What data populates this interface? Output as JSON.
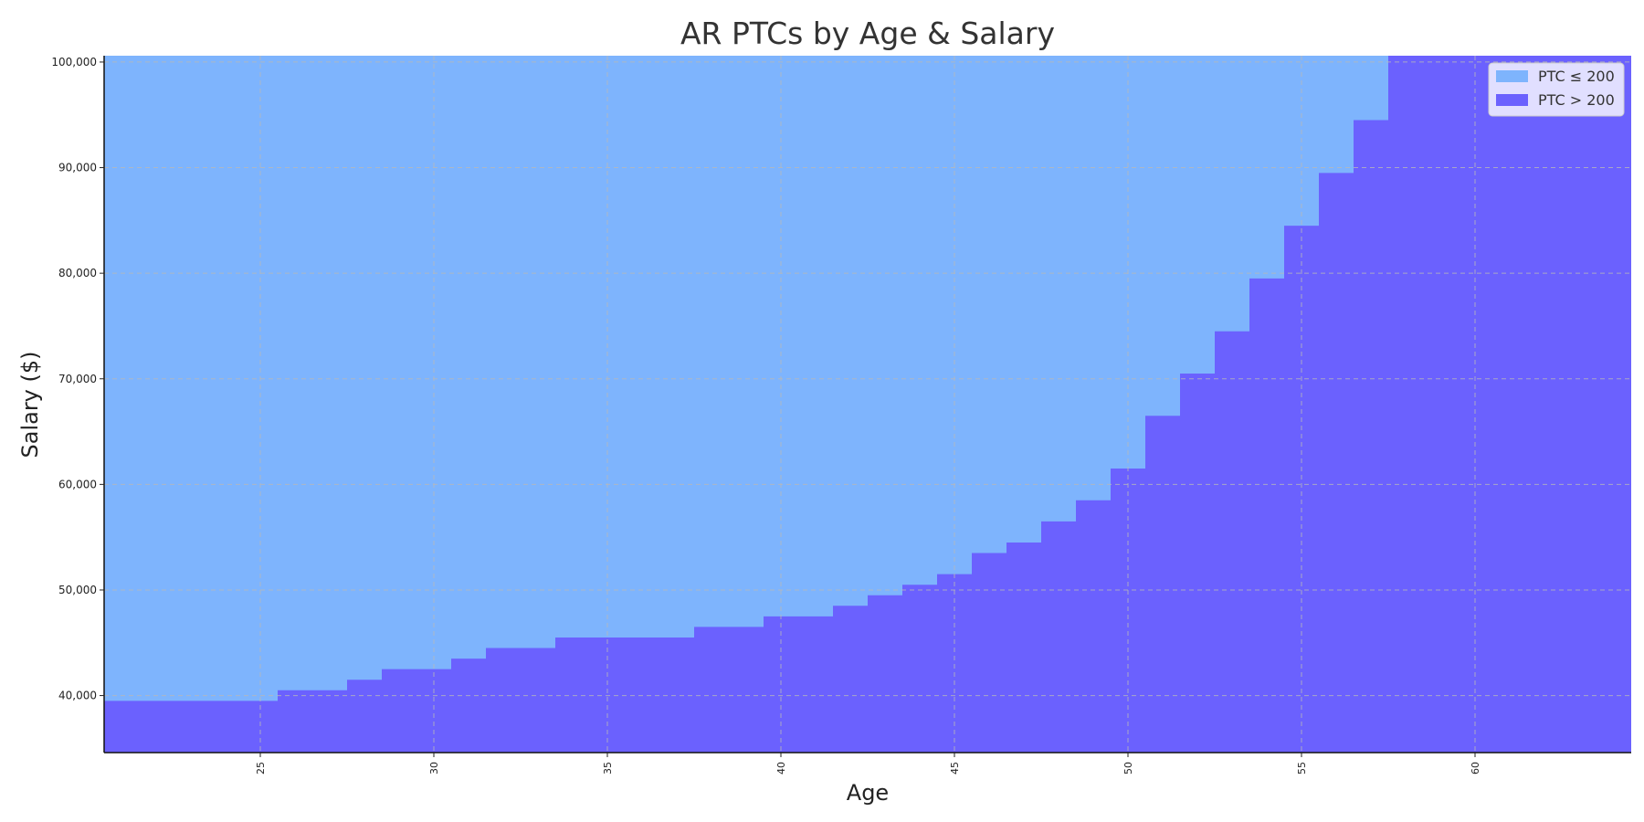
{
  "chart_data": {
    "type": "area",
    "title": "AR PTCs by Age & Salary",
    "xlabel": "Age",
    "ylabel": "Salary ($)",
    "xlim": [
      20.5,
      64.5
    ],
    "ylim": [
      34600,
      100600
    ],
    "x_ticks": [
      25,
      30,
      35,
      40,
      45,
      50,
      55,
      60
    ],
    "y_ticks": [
      40000,
      50000,
      60000,
      70000,
      80000,
      90000,
      100000
    ],
    "y_tick_labels": [
      "40,000",
      "50,000",
      "60,000",
      "70,000",
      "80,000",
      "90,000",
      "100,000"
    ],
    "grid": true,
    "legend_position": "top-right",
    "colors": {
      "low": "#7eb4fd",
      "high": "#6b61fe"
    },
    "series": [
      {
        "name": "PTC ≤ 200",
        "color": "#7eb4fd"
      },
      {
        "name": "PTC > 200",
        "color": "#6b61fe"
      }
    ],
    "threshold_steps": {
      "description_note": "",
      "ages": [
        21,
        22,
        23,
        24,
        25,
        26,
        27,
        28,
        29,
        30,
        31,
        32,
        33,
        34,
        35,
        36,
        37,
        38,
        39,
        40,
        41,
        42,
        43,
        44,
        45,
        46,
        47,
        48,
        49,
        50,
        51,
        52,
        53,
        54,
        55,
        56,
        57,
        58,
        59,
        60,
        61,
        62,
        63,
        64
      ],
      "salary": [
        39500,
        39500,
        39500,
        39500,
        39500,
        40500,
        40500,
        41500,
        42500,
        42500,
        43500,
        44500,
        44500,
        45500,
        45500,
        45500,
        45500,
        46500,
        46500,
        47500,
        47500,
        48500,
        49500,
        50500,
        51500,
        53500,
        54500,
        56500,
        58500,
        61500,
        66500,
        70500,
        74500,
        79500,
        84500,
        89500,
        94500,
        100600,
        100600,
        100600,
        100600,
        100600,
        100600,
        100600
      ]
    }
  }
}
